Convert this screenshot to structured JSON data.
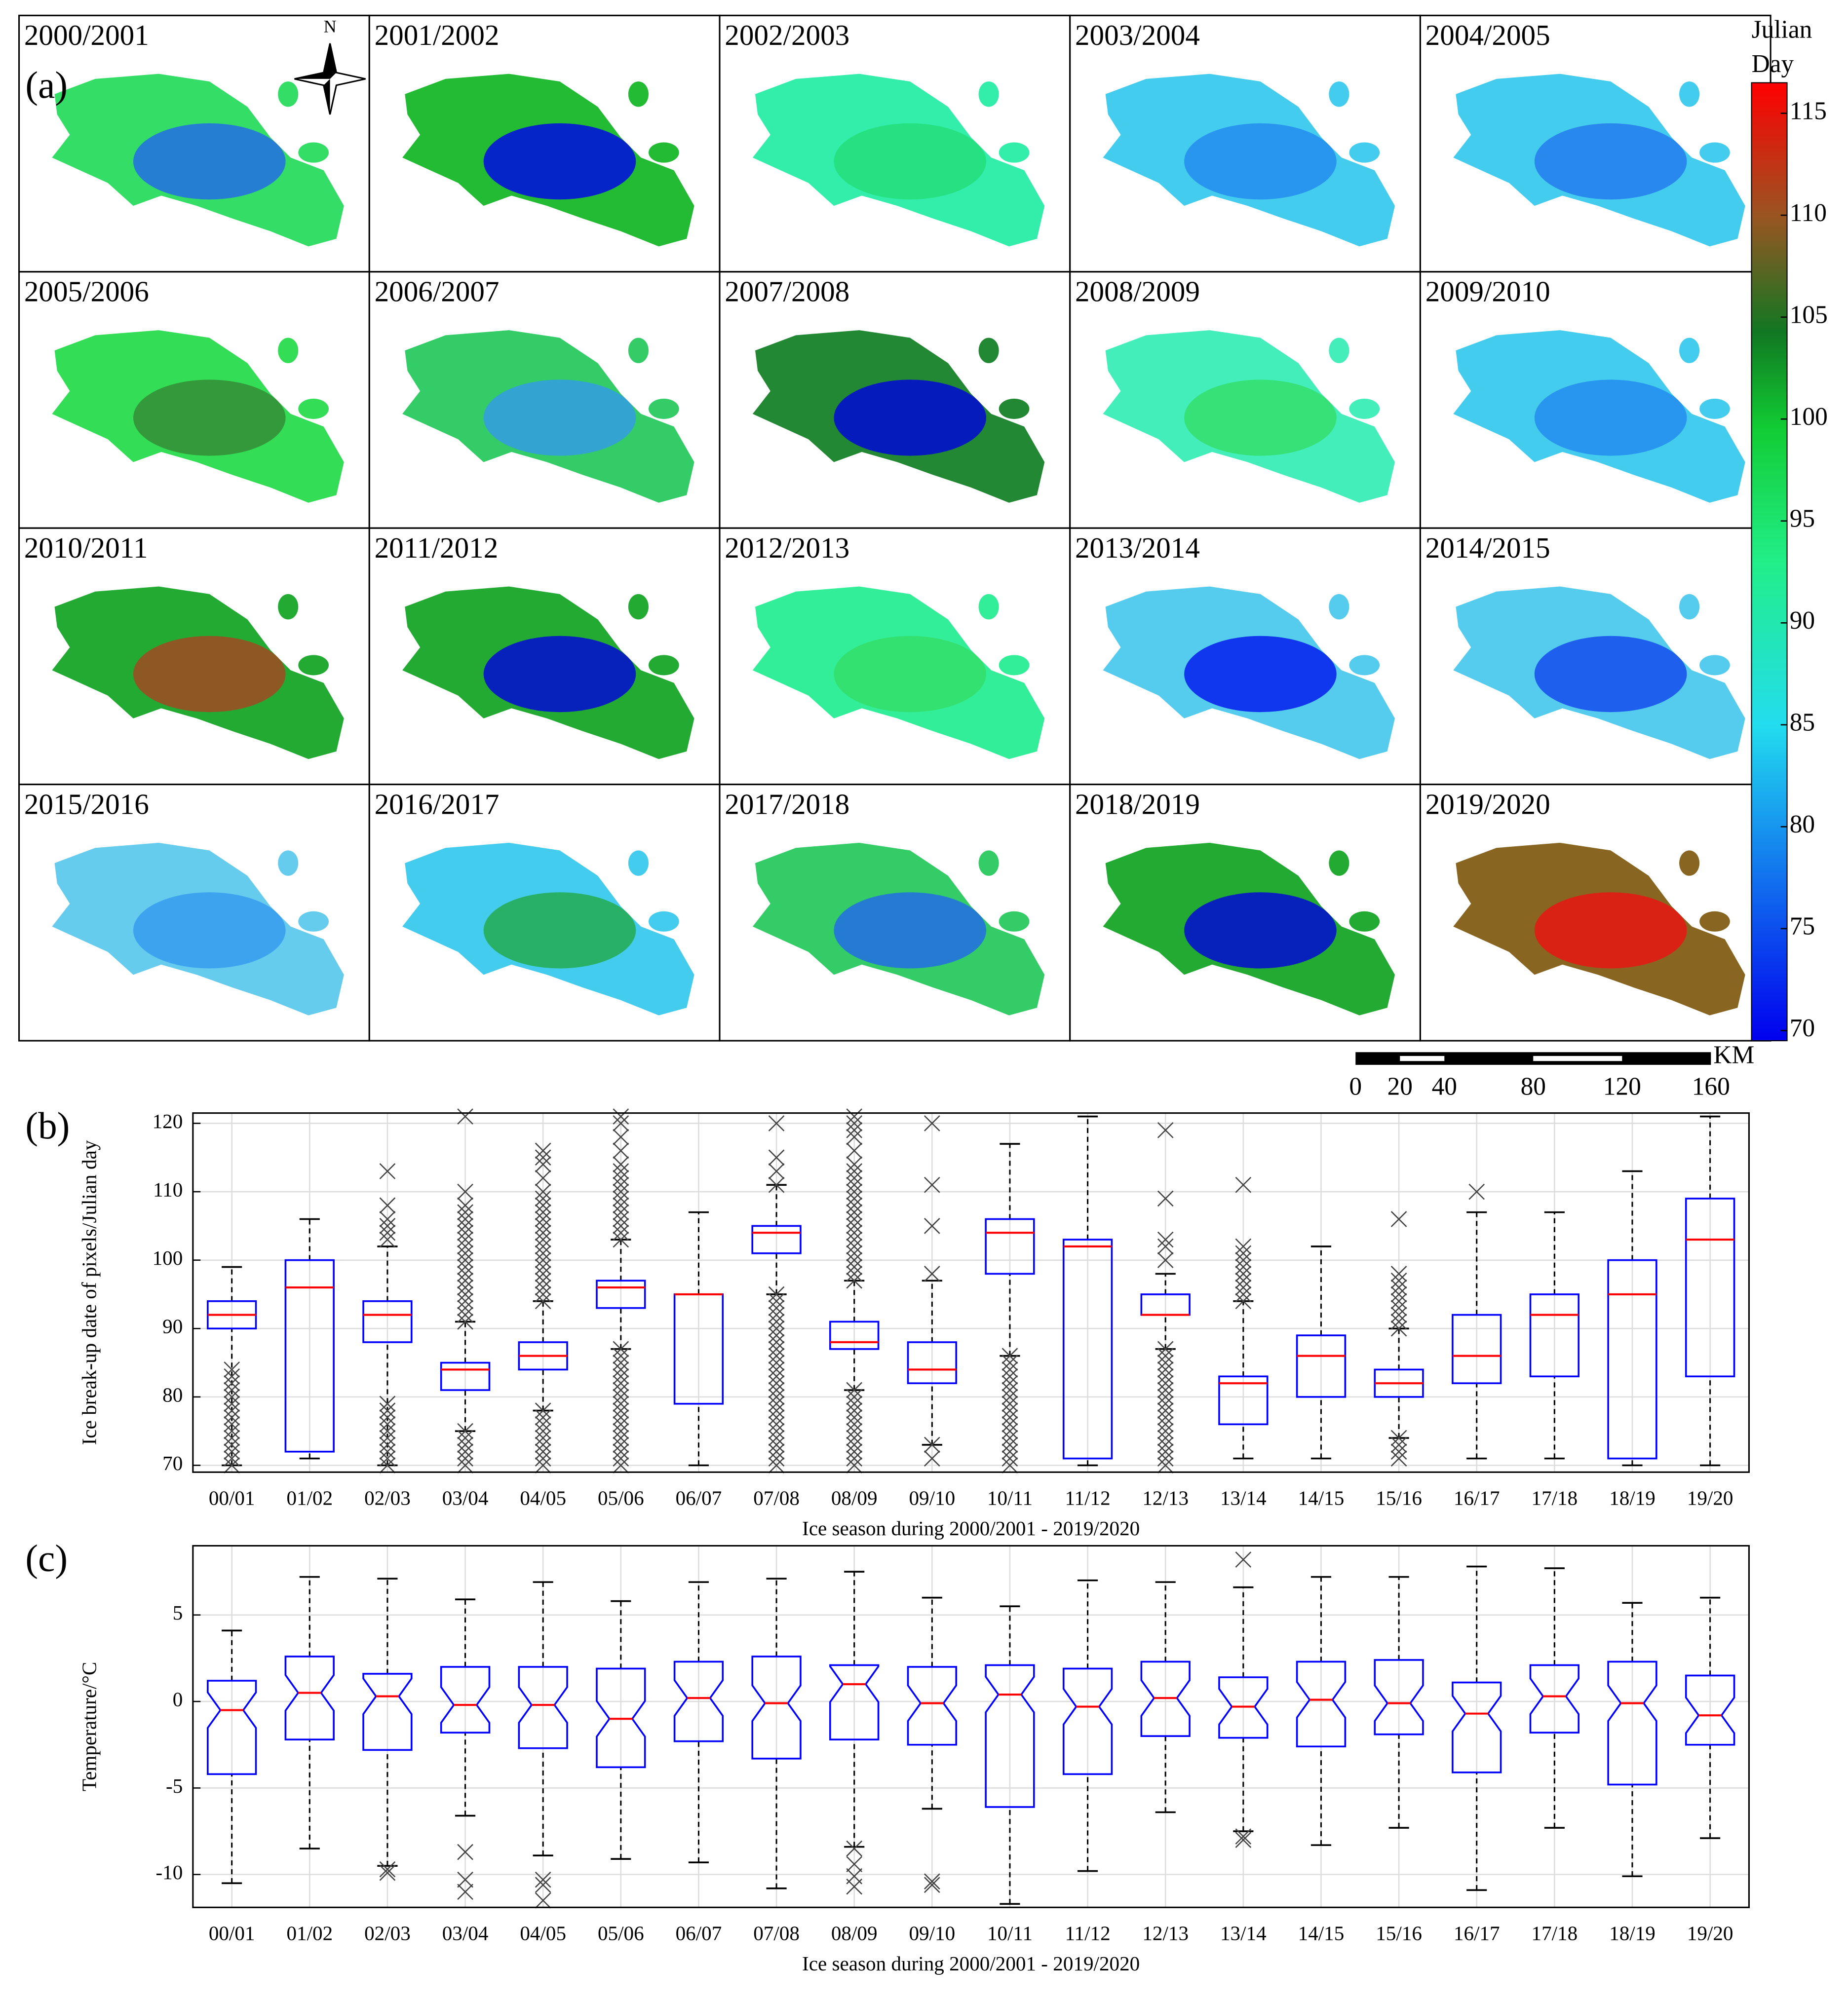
{
  "map_panel": {
    "panel_label": "(a)",
    "north": "N",
    "tiles": [
      {
        "label": "2000/2001",
        "color": "#33dd66",
        "patch": "#2266ee"
      },
      {
        "label": "2001/2002",
        "color": "#22bb33",
        "patch": "#0000ee"
      },
      {
        "label": "2002/2003",
        "color": "#33eeaa",
        "patch": "#22dd77"
      },
      {
        "label": "2003/2004",
        "color": "#44ccee",
        "patch": "#2288ee"
      },
      {
        "label": "2004/2005",
        "color": "#44ccee",
        "patch": "#2277ee"
      },
      {
        "label": "2005/2006",
        "color": "#33dd55",
        "patch": "#338833"
      },
      {
        "label": "2006/2007",
        "color": "#33cc66",
        "patch": "#3399ee"
      },
      {
        "label": "2007/2008",
        "color": "#228833",
        "patch": "#0000dd"
      },
      {
        "label": "2008/2009",
        "color": "#44eebb",
        "patch": "#33dd66"
      },
      {
        "label": "2009/2010",
        "color": "#44ccee",
        "patch": "#2288ee"
      },
      {
        "label": "2010/2011",
        "color": "#22aa33",
        "patch": "#aa4422"
      },
      {
        "label": "2011/2012",
        "color": "#22aa33",
        "patch": "#0000dd"
      },
      {
        "label": "2012/2013",
        "color": "#33ee99",
        "patch": "#33dd66"
      },
      {
        "label": "2013/2014",
        "color": "#55ccee",
        "patch": "#0011ee"
      },
      {
        "label": "2014/2015",
        "color": "#55ccee",
        "patch": "#1144ee"
      },
      {
        "label": "2015/2016",
        "color": "#66ccee",
        "patch": "#3399ee"
      },
      {
        "label": "2016/2017",
        "color": "#44ccee",
        "patch": "#22aa44"
      },
      {
        "label": "2017/2018",
        "color": "#33cc66",
        "patch": "#2266ee"
      },
      {
        "label": "2018/2019",
        "color": "#22aa33",
        "patch": "#0000dd"
      },
      {
        "label": "2019/2020",
        "color": "#886622",
        "patch": "#ee1111"
      }
    ],
    "colorbar": {
      "title": [
        "Julian",
        "Day"
      ],
      "lim": [
        69.5,
        116.5
      ],
      "ticks": [
        70,
        75,
        80,
        85,
        90,
        95,
        100,
        105,
        110,
        115
      ]
    },
    "scalebar": {
      "ticks": [
        0,
        20,
        40,
        80,
        120,
        160
      ],
      "unit": "KM"
    }
  },
  "chart_data": [
    {
      "type": "box",
      "panel_label": "(b)",
      "ylabel": "Ice break-up date of pixels/Julian day",
      "xlabel": "Ice season during 2000/2001 - 2019/2020",
      "categories": [
        "00/01",
        "01/02",
        "02/03",
        "03/04",
        "04/05",
        "05/06",
        "06/07",
        "07/08",
        "08/09",
        "09/10",
        "10/11",
        "11/12",
        "12/13",
        "13/14",
        "14/15",
        "15/16",
        "16/17",
        "17/18",
        "18/19",
        "19/20"
      ],
      "whisker_low": [
        70,
        71,
        70,
        75,
        78,
        87,
        70,
        95,
        81,
        73,
        86,
        70,
        87,
        71,
        71,
        74,
        71,
        71,
        70,
        70
      ],
      "q1": [
        90,
        72,
        88,
        81,
        84,
        93,
        79,
        101,
        87,
        82,
        98,
        71,
        92,
        76,
        80,
        80,
        82,
        83,
        71,
        83
      ],
      "median": [
        92,
        96,
        92,
        84,
        86,
        96,
        95,
        104,
        88,
        84,
        104,
        102,
        92,
        82,
        86,
        82,
        86,
        92,
        95,
        103
      ],
      "q3": [
        94,
        100,
        94,
        85,
        88,
        97,
        95,
        105,
        91,
        88,
        106,
        103,
        95,
        83,
        89,
        84,
        92,
        95,
        100,
        109
      ],
      "whisker_high": [
        99,
        106,
        102,
        91,
        94,
        103,
        107,
        111,
        97,
        97,
        117,
        121,
        98,
        94,
        102,
        90,
        107,
        107,
        113,
        121
      ],
      "outliers": [
        [
          70,
          71,
          72,
          73,
          74,
          75,
          76,
          77,
          78,
          79,
          80,
          81,
          82,
          83,
          84
        ],
        [],
        [
          70,
          71,
          72,
          73,
          74,
          75,
          76,
          77,
          78,
          79,
          103,
          104,
          105,
          106,
          108,
          113
        ],
        [
          70,
          71,
          72,
          73,
          74,
          75,
          91,
          92,
          93,
          94,
          95,
          96,
          97,
          98,
          99,
          100,
          101,
          102,
          103,
          104,
          105,
          106,
          107,
          108,
          110,
          121
        ],
        [
          70,
          71,
          72,
          73,
          74,
          75,
          76,
          77,
          78,
          94,
          95,
          96,
          97,
          98,
          99,
          100,
          101,
          102,
          103,
          104,
          105,
          106,
          107,
          108,
          109,
          110,
          112,
          114,
          115,
          116
        ],
        [
          70,
          71,
          72,
          73,
          74,
          75,
          76,
          77,
          78,
          79,
          80,
          81,
          82,
          83,
          84,
          85,
          86,
          87,
          103,
          104,
          105,
          106,
          107,
          108,
          109,
          110,
          111,
          112,
          113,
          114,
          116,
          118,
          120,
          121
        ],
        [],
        [
          70,
          71,
          72,
          73,
          74,
          75,
          76,
          77,
          78,
          79,
          80,
          81,
          82,
          83,
          84,
          85,
          86,
          87,
          88,
          89,
          90,
          91,
          92,
          93,
          94,
          95,
          111,
          113,
          115,
          120
        ],
        [
          70,
          71,
          72,
          73,
          74,
          75,
          76,
          77,
          78,
          79,
          80,
          81,
          97,
          98,
          99,
          100,
          101,
          102,
          103,
          104,
          105,
          106,
          107,
          108,
          109,
          110,
          111,
          112,
          113,
          114,
          116,
          118,
          119,
          120,
          121
        ],
        [
          71,
          73,
          98,
          105,
          111,
          120
        ],
        [
          70,
          71,
          72,
          73,
          74,
          75,
          76,
          77,
          78,
          79,
          80,
          81,
          82,
          83,
          84,
          85,
          86
        ],
        [],
        [
          70,
          71,
          72,
          73,
          74,
          75,
          76,
          77,
          78,
          79,
          80,
          81,
          82,
          83,
          84,
          85,
          86,
          87,
          100,
          102,
          103,
          109,
          119
        ],
        [
          94,
          95,
          96,
          97,
          98,
          99,
          100,
          101,
          102,
          111
        ],
        [],
        [
          71,
          72,
          73,
          74,
          90,
          91,
          92,
          93,
          94,
          95,
          96,
          97,
          98,
          106
        ],
        [
          110
        ],
        [],
        [],
        []
      ],
      "ylim": [
        69,
        121.5
      ],
      "yticks": [
        70,
        80,
        90,
        100,
        110,
        120
      ],
      "grid": true,
      "notch": false
    },
    {
      "type": "box",
      "panel_label": "(c)",
      "ylabel": "Temperature/°C",
      "xlabel": "Ice season during 2000/2001 - 2019/2020",
      "categories": [
        "00/01",
        "01/02",
        "02/03",
        "03/04",
        "04/05",
        "05/06",
        "06/07",
        "07/08",
        "08/09",
        "09/10",
        "10/11",
        "11/12",
        "12/13",
        "13/14",
        "14/15",
        "15/16",
        "16/17",
        "17/18",
        "18/19",
        "19/20"
      ],
      "whisker_low": [
        -10.5,
        -8.5,
        -9.5,
        -6.6,
        -8.9,
        -9.1,
        -9.3,
        -10.8,
        -8.4,
        -6.2,
        -11.7,
        -9.8,
        -6.4,
        -7.5,
        -8.3,
        -7.3,
        -10.9,
        -7.3,
        -10.1,
        -7.9
      ],
      "q1": [
        -4.2,
        -2.2,
        -2.8,
        -1.8,
        -2.7,
        -3.8,
        -2.3,
        -3.3,
        -2.2,
        -2.5,
        -6.1,
        -4.2,
        -2.0,
        -2.1,
        -2.6,
        -1.9,
        -4.1,
        -1.8,
        -4.8,
        -2.5
      ],
      "median": [
        -0.5,
        0.5,
        0.3,
        -0.2,
        -0.2,
        -1.0,
        0.2,
        -0.1,
        1.0,
        -0.1,
        0.4,
        -0.3,
        0.2,
        -0.3,
        0.1,
        -0.1,
        -0.7,
        0.3,
        -0.1,
        -0.8
      ],
      "q3": [
        1.2,
        2.6,
        1.6,
        2.0,
        2.0,
        1.9,
        2.3,
        2.6,
        2.1,
        2.0,
        2.1,
        1.9,
        2.3,
        1.4,
        2.3,
        2.4,
        1.1,
        2.1,
        2.3,
        1.5
      ],
      "whisker_high": [
        4.1,
        7.2,
        7.1,
        5.9,
        6.9,
        5.8,
        6.9,
        7.1,
        7.5,
        6.0,
        5.5,
        7.0,
        6.9,
        6.6,
        7.2,
        7.2,
        7.8,
        7.7,
        5.7,
        6.0
      ],
      "outliers": [
        [],
        [],
        [
          -9.7,
          -9.9
        ],
        [
          -8.7,
          -10.3,
          -11.0
        ],
        [
          -10.3,
          -10.6,
          -11.5
        ],
        [],
        [],
        [],
        [
          -8.5,
          -9.4,
          -10.1,
          -10.7
        ],
        [
          -10.4,
          -10.6
        ],
        [],
        [],
        [],
        [
          8.2,
          -7.8,
          -8.0
        ],
        [],
        [],
        [],
        [],
        [],
        []
      ],
      "ylim": [
        -11.9,
        9
      ],
      "yticks": [
        -10,
        -5,
        0,
        5
      ],
      "grid": true,
      "notch": true
    }
  ]
}
